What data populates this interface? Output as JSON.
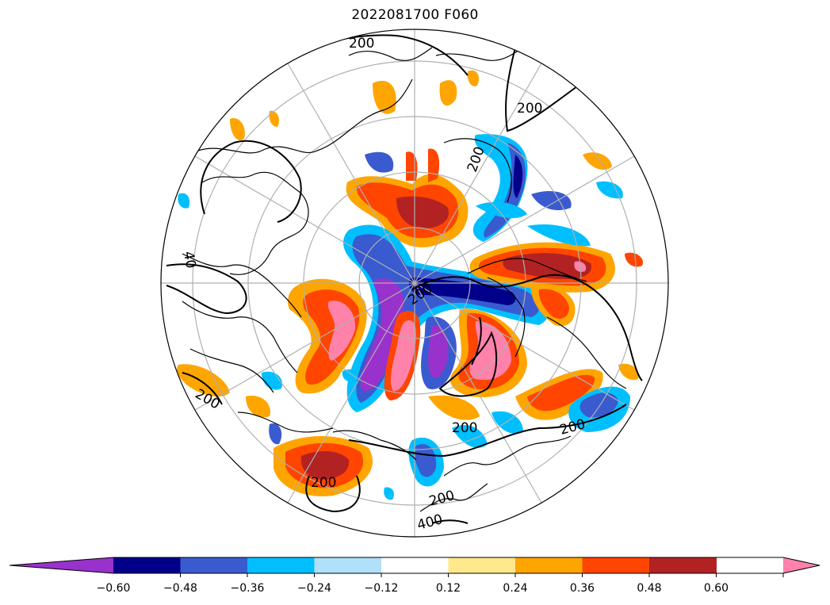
{
  "title": "2022081700 F060",
  "map": {
    "projection": "north-polar-stereographic",
    "contour_labels": [
      "200",
      "200",
      "200",
      "200",
      "200",
      "200",
      "200",
      "200",
      "200",
      "40",
      "400"
    ],
    "contour_color": "#000000",
    "graticule_color": "#b0b0b0",
    "coastline_color": "#000000"
  },
  "colorbar": {
    "extend": "both",
    "levels": [
      -0.6,
      -0.48,
      -0.36,
      -0.24,
      -0.12,
      0.12,
      0.24,
      0.36,
      0.48,
      0.6
    ],
    "tick_labels": [
      "−0.60",
      "−0.48",
      "−0.36",
      "−0.24",
      "−0.12",
      "0.12",
      "0.24",
      "0.36",
      "0.48",
      "0.60"
    ],
    "colors": [
      "#9932cc",
      "#00008b",
      "#3a5bd0",
      "#00bfff",
      "#b0e0fa",
      "#ffffff",
      "#ffe98c",
      "#ffa500",
      "#ff4500",
      "#b22222",
      "#ff82ab"
    ]
  }
}
